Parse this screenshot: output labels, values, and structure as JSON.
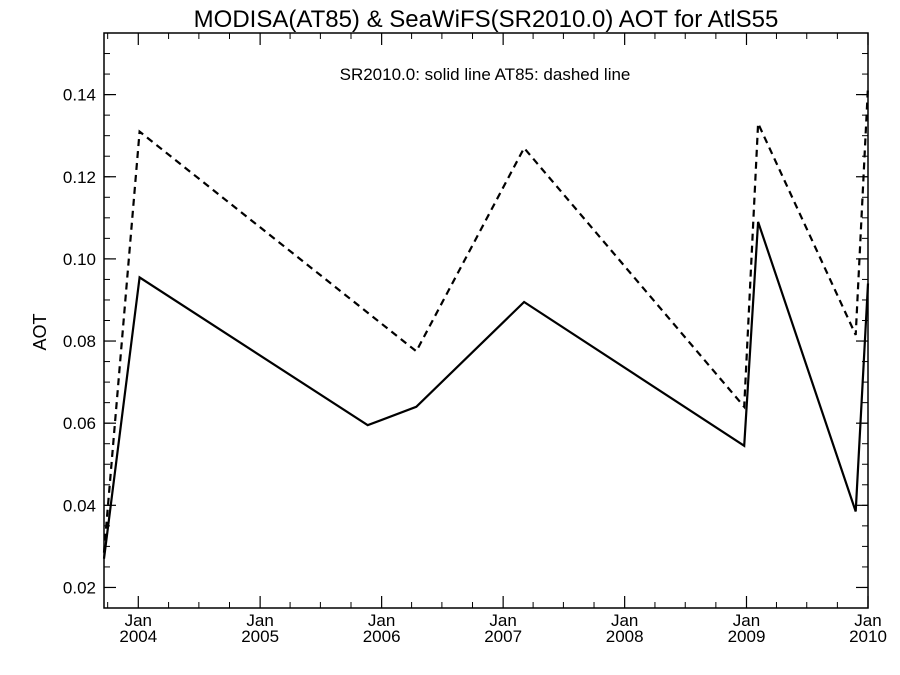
{
  "chart_data": {
    "type": "line",
    "title": "MODISA(AT85) & SeaWiFS(SR2010.0)  AOT for AtlS55",
    "annotation": "SR2010.0: solid line   AT85: dashed line",
    "ylabel": "AOT",
    "xlabel": "",
    "ylim": [
      0.015,
      0.155
    ],
    "xlim": [
      "2003-09-20",
      "2010-01-01"
    ],
    "yticks": [
      "0.02",
      "0.04",
      "0.06",
      "0.08",
      "0.10",
      "0.12",
      "0.14"
    ],
    "xticks": [
      {
        "date": "2004-01-01",
        "month": "Jan",
        "year": "2004"
      },
      {
        "date": "2005-01-01",
        "month": "Jan",
        "year": "2005"
      },
      {
        "date": "2006-01-01",
        "month": "Jan",
        "year": "2006"
      },
      {
        "date": "2007-01-01",
        "month": "Jan",
        "year": "2007"
      },
      {
        "date": "2008-01-01",
        "month": "Jan",
        "year": "2008"
      },
      {
        "date": "2009-01-01",
        "month": "Jan",
        "year": "2009"
      },
      {
        "date": "2010-01-01",
        "month": "Jan",
        "year": "2010"
      }
    ],
    "grid": false,
    "series": [
      {
        "id": "SR2010.0",
        "style": "solid",
        "color": "#000000",
        "points": [
          {
            "x": "2003-09-20",
            "y": 0.027
          },
          {
            "x": "2004-01-05",
            "y": 0.0955
          },
          {
            "x": "2005-11-20",
            "y": 0.0595
          },
          {
            "x": "2006-04-15",
            "y": 0.064
          },
          {
            "x": "2007-03-05",
            "y": 0.0895
          },
          {
            "x": "2008-12-25",
            "y": 0.0545
          },
          {
            "x": "2009-02-05",
            "y": 0.109
          },
          {
            "x": "2009-11-25",
            "y": 0.0385
          },
          {
            "x": "2010-01-01",
            "y": 0.094
          }
        ]
      },
      {
        "id": "AT85",
        "style": "dashed",
        "color": "#000000",
        "points": [
          {
            "x": "2003-09-20",
            "y": 0.0285
          },
          {
            "x": "2004-01-05",
            "y": 0.131
          },
          {
            "x": "2006-04-15",
            "y": 0.0775
          },
          {
            "x": "2007-03-05",
            "y": 0.127
          },
          {
            "x": "2008-12-25",
            "y": 0.064
          },
          {
            "x": "2009-02-05",
            "y": 0.133
          },
          {
            "x": "2009-11-25",
            "y": 0.0815
          },
          {
            "x": "2010-01-01",
            "y": 0.142
          }
        ]
      }
    ]
  }
}
